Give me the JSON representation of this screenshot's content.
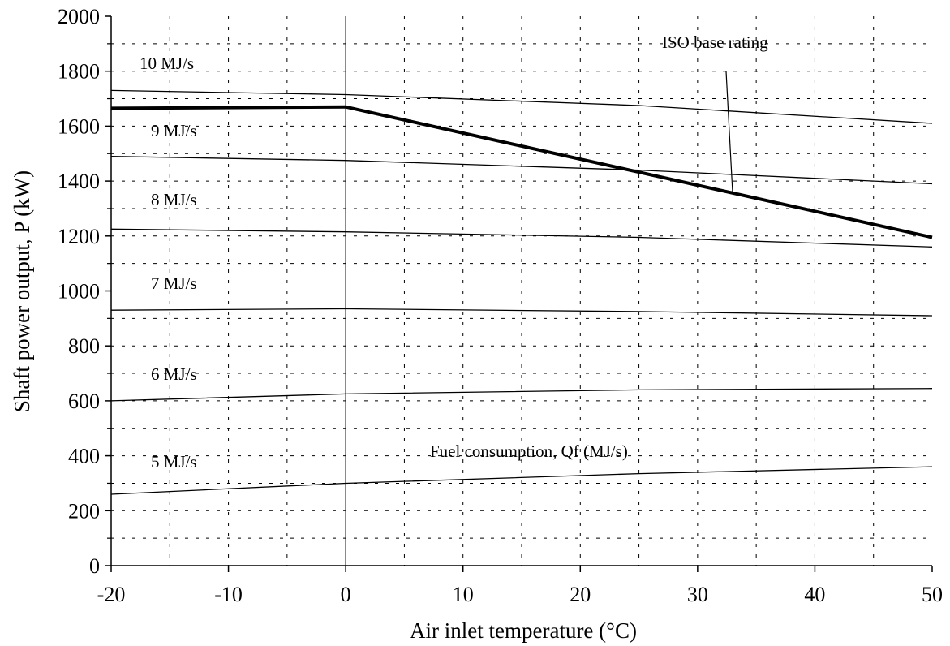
{
  "chart_data": {
    "type": "line",
    "title": "",
    "xlabel": "Air inlet temperature  (°C)",
    "ylabel": "Shaft power output, P  (kW)",
    "xlim": [
      -20,
      50
    ],
    "ylim": [
      0,
      2000
    ],
    "x_ticks": [
      -20,
      -10,
      0,
      10,
      20,
      30,
      40,
      50
    ],
    "y_ticks": [
      0,
      200,
      400,
      600,
      800,
      1000,
      1200,
      1400,
      1600,
      1800,
      2000
    ],
    "x_tick_labels": [
      "-20",
      "-10",
      "0",
      "10",
      "20",
      "30",
      "40",
      "50"
    ],
    "y_tick_labels": [
      "0",
      "200",
      "400",
      "600",
      "800",
      "1000",
      "1200",
      "1400",
      "1600",
      "1800",
      "2000"
    ],
    "grid": "dashed",
    "series": [
      {
        "name": "10 MJ/s",
        "x": [
          -20,
          0,
          25,
          50
        ],
        "y": [
          1730,
          1715,
          1675,
          1610
        ]
      },
      {
        "name": "9 MJ/s",
        "x": [
          -20,
          0,
          25,
          50
        ],
        "y": [
          1490,
          1475,
          1440,
          1390
        ]
      },
      {
        "name": "8 MJ/s",
        "x": [
          -20,
          0,
          25,
          50
        ],
        "y": [
          1225,
          1215,
          1195,
          1160
        ]
      },
      {
        "name": "7 MJ/s",
        "x": [
          -20,
          0,
          25,
          50
        ],
        "y": [
          930,
          935,
          925,
          910
        ]
      },
      {
        "name": "6 MJ/s",
        "x": [
          -20,
          0,
          25,
          50
        ],
        "y": [
          600,
          625,
          640,
          645
        ]
      },
      {
        "name": "5 MJ/s",
        "x": [
          -20,
          0,
          25,
          50
        ],
        "y": [
          260,
          300,
          335,
          360
        ]
      },
      {
        "name": "ISO base rating",
        "x": [
          -20,
          0,
          50
        ],
        "y": [
          1665,
          1670,
          1195
        ]
      }
    ],
    "annotations": {
      "fuel_consumption": "Fuel consumption, Qf  (MJ/s)",
      "iso_base_rating": "ISO base rating"
    }
  }
}
